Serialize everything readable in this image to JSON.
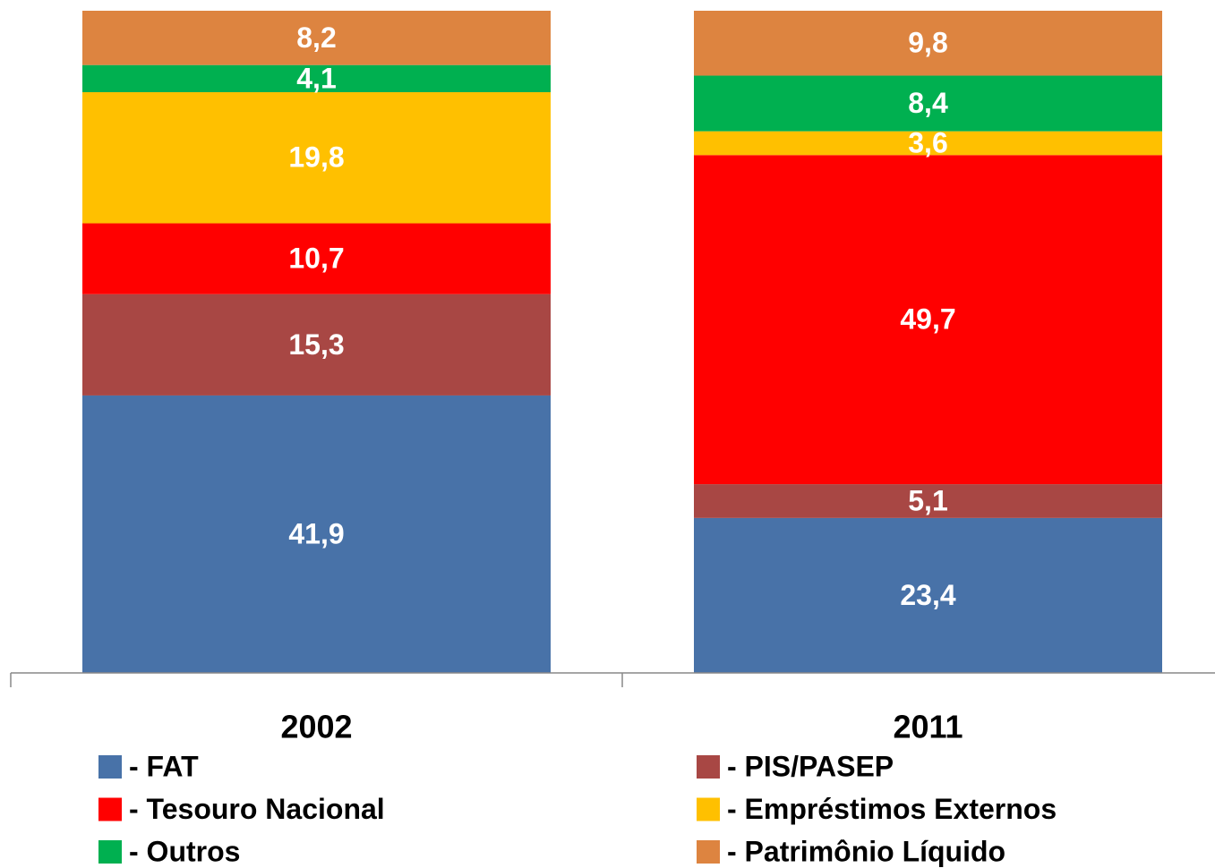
{
  "chart_data": {
    "type": "stacked_bar",
    "categories": [
      "2002",
      "2011"
    ],
    "ylim": [
      0,
      100
    ],
    "series": [
      {
        "name": "- FAT",
        "color": "#4872a8",
        "values": [
          41.9,
          23.4
        ],
        "value_labels": [
          "41,9",
          "23,4"
        ]
      },
      {
        "name": "- PIS/PASEP",
        "color": "#a84744",
        "values": [
          15.3,
          5.1
        ],
        "value_labels": [
          "15,3",
          "5,1"
        ]
      },
      {
        "name": "- Tesouro Nacional",
        "color": "#ff0000",
        "values": [
          10.7,
          49.7
        ],
        "value_labels": [
          "10,7",
          "49,7"
        ]
      },
      {
        "name": "- Empréstimos Externos",
        "color": "#ffc000",
        "values": [
          19.8,
          3.6
        ],
        "value_labels": [
          "19,8",
          "3,6"
        ]
      },
      {
        "name": "- Outros",
        "color": "#00b050",
        "values": [
          4.1,
          8.4
        ],
        "value_labels": [
          "4,1",
          "8,4"
        ]
      },
      {
        "name": "- Patrimônio Líquido",
        "color": "#dd8440",
        "values": [
          8.2,
          9.8
        ],
        "value_labels": [
          "8,2",
          "9,8"
        ]
      }
    ]
  }
}
